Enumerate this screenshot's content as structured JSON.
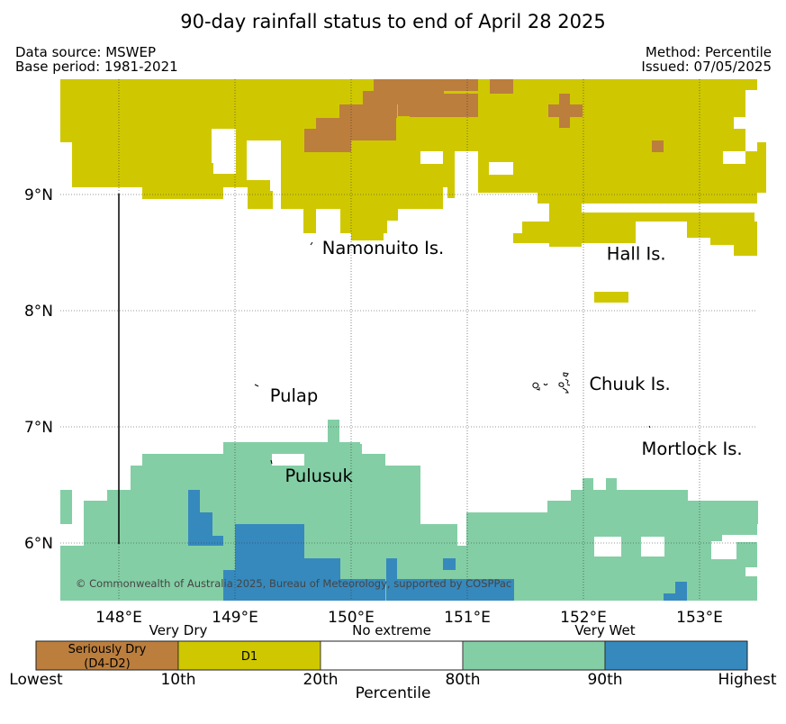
{
  "header": {
    "title": "90-day rainfall status to end of April 28 2025",
    "data_source": "Data source: MSWEP",
    "base_period": "Base period: 1981-2021",
    "method": "Method: Percentile",
    "issued": "Issued: 07/05/2025"
  },
  "map": {
    "lat_labels": [
      {
        "lat": 9,
        "label": "9°N"
      },
      {
        "lat": 8,
        "label": "8°N"
      },
      {
        "lat": 7,
        "label": "7°N"
      },
      {
        "lat": 6,
        "label": "6°N"
      }
    ],
    "lon_labels": [
      {
        "lon": 148,
        "label": "148°E"
      },
      {
        "lon": 149,
        "label": "149°E"
      },
      {
        "lon": 150,
        "label": "150°E"
      },
      {
        "lon": 151,
        "label": "151°E"
      },
      {
        "lon": 152,
        "label": "152°E"
      },
      {
        "lon": 153,
        "label": "153°E"
      }
    ],
    "places": [
      {
        "name": "Namonuito Is.",
        "lon": 149.75,
        "lat": 8.55
      },
      {
        "name": "Hall Is.",
        "lon": 152.2,
        "lat": 8.5
      },
      {
        "name": "Chuuk Is.",
        "lon": 152.05,
        "lat": 7.38
      },
      {
        "name": "Pulap",
        "lon": 149.3,
        "lat": 7.28
      },
      {
        "name": "Mortlock Is.",
        "lon": 152.5,
        "lat": 6.82
      },
      {
        "name": "Pulusuk",
        "lon": 149.43,
        "lat": 6.59
      }
    ],
    "copyright": "© Commonwealth of Australia 2025, Bureau of Meteorology, supported by COSPPac"
  },
  "legend": {
    "headings": [
      {
        "text": "Very Dry",
        "at": 1
      },
      {
        "text": "No extreme",
        "at": 2.5
      },
      {
        "text": "Very Wet",
        "at": 4
      }
    ],
    "bins": [
      {
        "label": "Seriously Dry\n(D4-D2)",
        "color": "#bb7e3d"
      },
      {
        "label": "D1",
        "color": "#cfc800"
      },
      {
        "label": "",
        "color": "#ffffff"
      },
      {
        "label": "",
        "color": "#84cea5"
      },
      {
        "label": "",
        "color": "#3689bd"
      }
    ],
    "boundaries": [
      "Lowest",
      "10th",
      "20th",
      "80th",
      "90th",
      "Highest"
    ],
    "axis_label": "Percentile"
  }
}
